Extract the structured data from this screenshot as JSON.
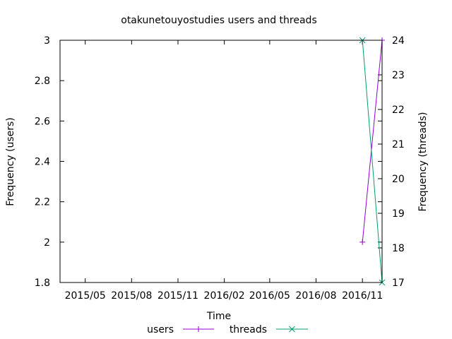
{
  "chart_data": {
    "type": "line",
    "title": "otakunetouyostudies users and threads",
    "xlabel": "Time",
    "ylabel": "Frequency (users)",
    "y2label": "Frequency (threads)",
    "x_tick_labels": [
      "2015/05",
      "2015/08",
      "2015/11",
      "2016/02",
      "2016/05",
      "2016/08",
      "2016/11"
    ],
    "x_tick_dates": [
      "2015-05-01",
      "2015-08-01",
      "2015-11-01",
      "2016-02-01",
      "2016-05-01",
      "2016-08-01",
      "2016-11-01"
    ],
    "xlim": [
      "2015-03-12",
      "2016-12-10"
    ],
    "ylim": [
      1.8,
      3
    ],
    "y_ticks": [
      1.8,
      2,
      2.2,
      2.4,
      2.6,
      2.8,
      3
    ],
    "y_tick_labels": [
      "1.8",
      "2",
      "2.2",
      "2.4",
      "2.6",
      "2.8",
      "3"
    ],
    "y2lim": [
      17,
      24
    ],
    "y2_ticks": [
      17,
      18,
      19,
      20,
      21,
      22,
      23,
      24
    ],
    "y2_tick_labels": [
      "17",
      "18",
      "19",
      "20",
      "21",
      "22",
      "23",
      "24"
    ],
    "grid": false,
    "legend_position": "bottom-center",
    "series": [
      {
        "name": "users",
        "axis": "left",
        "color": "#9400d3",
        "marker": "plus",
        "x": [
          "2016-11-01",
          "2016-12-10"
        ],
        "values": [
          2,
          3
        ]
      },
      {
        "name": "threads",
        "axis": "right",
        "color": "#009e73",
        "marker": "cross",
        "x": [
          "2016-11-01",
          "2016-12-10"
        ],
        "values": [
          24,
          17
        ]
      }
    ]
  }
}
